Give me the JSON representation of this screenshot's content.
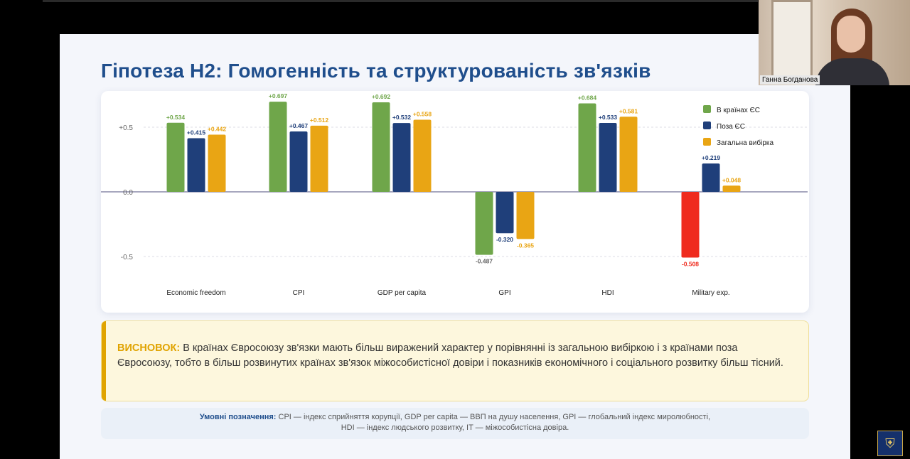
{
  "slide": {
    "title": "Гіпотеза Н2: Гомогенність та структурованість зв'язків",
    "conclusion_label": "ВИСНОВОК:",
    "conclusion_text": " В країнах Євросоюзу зв'язки мають більш виражений характер у порівнянні із загальною вибіркою і з країнами поза Євросоюзу, тобто в більш розвинутих країнах зв'язок міжособистісної довіри і показників економічного і соціального розвитку більш тісний.",
    "legend_note_label": "Умовні позначення:",
    "legend_note_line1": " CPI — індекс сприйняття корупції, GDP per capita — ВВП на душу населення, GPI — глобальний індекс миролюбності,",
    "legend_note_line2": "HDI — індекс людського розвитку, IT — міжособистісна довіра."
  },
  "webcam": {
    "participant_name": "Ганна Богданова"
  },
  "logo": {
    "icon": "university-crest-icon"
  },
  "colors": {
    "eu": "#6fa64a",
    "non_eu": "#1f3f7a",
    "overall": "#e9a514",
    "negative_highlight": "#ef2b1e",
    "title": "#1f4e8c"
  },
  "chart_data": {
    "type": "bar",
    "categories": [
      "Economic freedom",
      "CPI",
      "GDP per capita",
      "GPI",
      "HDI",
      "Military exp."
    ],
    "series": [
      {
        "name": "В країнах ЄС",
        "values": [
          0.534,
          0.697,
          0.692,
          -0.487,
          0.684,
          -0.508
        ]
      },
      {
        "name": "Поза ЄС",
        "values": [
          0.415,
          0.467,
          0.532,
          -0.32,
          0.533,
          0.219
        ]
      },
      {
        "name": "Загальна вибірка",
        "values": [
          0.442,
          0.512,
          0.558,
          -0.365,
          0.581,
          0.048
        ]
      }
    ],
    "value_labels": [
      [
        "+0.534",
        "+0.697",
        "+0.692",
        "-0.487",
        "+0.684",
        "-0.508"
      ],
      [
        "+0.415",
        "+0.467",
        "+0.532",
        "-0.320",
        "+0.533",
        "+0.219"
      ],
      [
        "+0.442",
        "+0.512",
        "+0.558",
        "-0.365",
        "+0.581",
        "+0.048"
      ]
    ],
    "yticks": [
      0.5,
      0.0,
      -0.5
    ],
    "ytick_labels": [
      "+0.5",
      "0.0",
      "-0.5"
    ],
    "ylim": [
      -0.52,
      0.72
    ],
    "grid": true,
    "legend_position": "top-right",
    "title": "",
    "xlabel": "",
    "ylabel": ""
  }
}
